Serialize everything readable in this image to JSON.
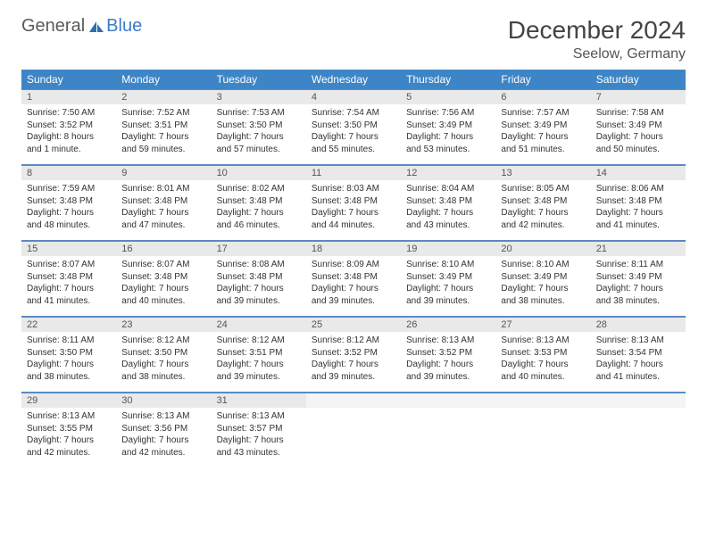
{
  "brand": {
    "part1": "General",
    "part2": "Blue"
  },
  "title": "December 2024",
  "location": "Seelow, Germany",
  "colors": {
    "header_bg": "#3d85c6",
    "header_text": "#ffffff",
    "daynum_bg": "#e9e9e9",
    "rule": "#5a8ac6",
    "brand_gray": "#5a5a5a",
    "brand_blue": "#3d7cc9"
  },
  "day_names": [
    "Sunday",
    "Monday",
    "Tuesday",
    "Wednesday",
    "Thursday",
    "Friday",
    "Saturday"
  ],
  "days": [
    {
      "n": "1",
      "sunrise": "Sunrise: 7:50 AM",
      "sunset": "Sunset: 3:52 PM",
      "daylight": "Daylight: 8 hours and 1 minute."
    },
    {
      "n": "2",
      "sunrise": "Sunrise: 7:52 AM",
      "sunset": "Sunset: 3:51 PM",
      "daylight": "Daylight: 7 hours and 59 minutes."
    },
    {
      "n": "3",
      "sunrise": "Sunrise: 7:53 AM",
      "sunset": "Sunset: 3:50 PM",
      "daylight": "Daylight: 7 hours and 57 minutes."
    },
    {
      "n": "4",
      "sunrise": "Sunrise: 7:54 AM",
      "sunset": "Sunset: 3:50 PM",
      "daylight": "Daylight: 7 hours and 55 minutes."
    },
    {
      "n": "5",
      "sunrise": "Sunrise: 7:56 AM",
      "sunset": "Sunset: 3:49 PM",
      "daylight": "Daylight: 7 hours and 53 minutes."
    },
    {
      "n": "6",
      "sunrise": "Sunrise: 7:57 AM",
      "sunset": "Sunset: 3:49 PM",
      "daylight": "Daylight: 7 hours and 51 minutes."
    },
    {
      "n": "7",
      "sunrise": "Sunrise: 7:58 AM",
      "sunset": "Sunset: 3:49 PM",
      "daylight": "Daylight: 7 hours and 50 minutes."
    },
    {
      "n": "8",
      "sunrise": "Sunrise: 7:59 AM",
      "sunset": "Sunset: 3:48 PM",
      "daylight": "Daylight: 7 hours and 48 minutes."
    },
    {
      "n": "9",
      "sunrise": "Sunrise: 8:01 AM",
      "sunset": "Sunset: 3:48 PM",
      "daylight": "Daylight: 7 hours and 47 minutes."
    },
    {
      "n": "10",
      "sunrise": "Sunrise: 8:02 AM",
      "sunset": "Sunset: 3:48 PM",
      "daylight": "Daylight: 7 hours and 46 minutes."
    },
    {
      "n": "11",
      "sunrise": "Sunrise: 8:03 AM",
      "sunset": "Sunset: 3:48 PM",
      "daylight": "Daylight: 7 hours and 44 minutes."
    },
    {
      "n": "12",
      "sunrise": "Sunrise: 8:04 AM",
      "sunset": "Sunset: 3:48 PM",
      "daylight": "Daylight: 7 hours and 43 minutes."
    },
    {
      "n": "13",
      "sunrise": "Sunrise: 8:05 AM",
      "sunset": "Sunset: 3:48 PM",
      "daylight": "Daylight: 7 hours and 42 minutes."
    },
    {
      "n": "14",
      "sunrise": "Sunrise: 8:06 AM",
      "sunset": "Sunset: 3:48 PM",
      "daylight": "Daylight: 7 hours and 41 minutes."
    },
    {
      "n": "15",
      "sunrise": "Sunrise: 8:07 AM",
      "sunset": "Sunset: 3:48 PM",
      "daylight": "Daylight: 7 hours and 41 minutes."
    },
    {
      "n": "16",
      "sunrise": "Sunrise: 8:07 AM",
      "sunset": "Sunset: 3:48 PM",
      "daylight": "Daylight: 7 hours and 40 minutes."
    },
    {
      "n": "17",
      "sunrise": "Sunrise: 8:08 AM",
      "sunset": "Sunset: 3:48 PM",
      "daylight": "Daylight: 7 hours and 39 minutes."
    },
    {
      "n": "18",
      "sunrise": "Sunrise: 8:09 AM",
      "sunset": "Sunset: 3:48 PM",
      "daylight": "Daylight: 7 hours and 39 minutes."
    },
    {
      "n": "19",
      "sunrise": "Sunrise: 8:10 AM",
      "sunset": "Sunset: 3:49 PM",
      "daylight": "Daylight: 7 hours and 39 minutes."
    },
    {
      "n": "20",
      "sunrise": "Sunrise: 8:10 AM",
      "sunset": "Sunset: 3:49 PM",
      "daylight": "Daylight: 7 hours and 38 minutes."
    },
    {
      "n": "21",
      "sunrise": "Sunrise: 8:11 AM",
      "sunset": "Sunset: 3:49 PM",
      "daylight": "Daylight: 7 hours and 38 minutes."
    },
    {
      "n": "22",
      "sunrise": "Sunrise: 8:11 AM",
      "sunset": "Sunset: 3:50 PM",
      "daylight": "Daylight: 7 hours and 38 minutes."
    },
    {
      "n": "23",
      "sunrise": "Sunrise: 8:12 AM",
      "sunset": "Sunset: 3:50 PM",
      "daylight": "Daylight: 7 hours and 38 minutes."
    },
    {
      "n": "24",
      "sunrise": "Sunrise: 8:12 AM",
      "sunset": "Sunset: 3:51 PM",
      "daylight": "Daylight: 7 hours and 39 minutes."
    },
    {
      "n": "25",
      "sunrise": "Sunrise: 8:12 AM",
      "sunset": "Sunset: 3:52 PM",
      "daylight": "Daylight: 7 hours and 39 minutes."
    },
    {
      "n": "26",
      "sunrise": "Sunrise: 8:13 AM",
      "sunset": "Sunset: 3:52 PM",
      "daylight": "Daylight: 7 hours and 39 minutes."
    },
    {
      "n": "27",
      "sunrise": "Sunrise: 8:13 AM",
      "sunset": "Sunset: 3:53 PM",
      "daylight": "Daylight: 7 hours and 40 minutes."
    },
    {
      "n": "28",
      "sunrise": "Sunrise: 8:13 AM",
      "sunset": "Sunset: 3:54 PM",
      "daylight": "Daylight: 7 hours and 41 minutes."
    },
    {
      "n": "29",
      "sunrise": "Sunrise: 8:13 AM",
      "sunset": "Sunset: 3:55 PM",
      "daylight": "Daylight: 7 hours and 42 minutes."
    },
    {
      "n": "30",
      "sunrise": "Sunrise: 8:13 AM",
      "sunset": "Sunset: 3:56 PM",
      "daylight": "Daylight: 7 hours and 42 minutes."
    },
    {
      "n": "31",
      "sunrise": "Sunrise: 8:13 AM",
      "sunset": "Sunset: 3:57 PM",
      "daylight": "Daylight: 7 hours and 43 minutes."
    }
  ]
}
